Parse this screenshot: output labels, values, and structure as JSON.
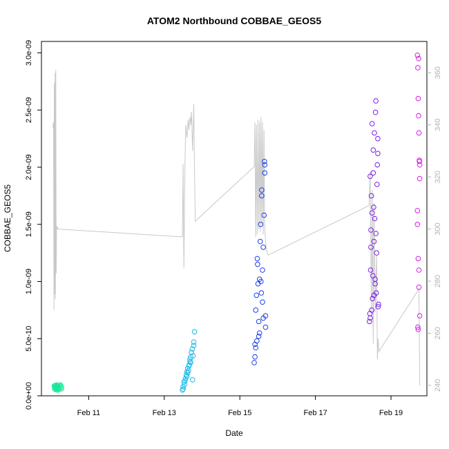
{
  "chart_data": {
    "type": "scatter",
    "title": "ATOM2 Northbound COBBAE_GEOS5",
    "xlabel": "Date",
    "ylabel": "COBBAE_GEOS5",
    "xlim": [
      9.75,
      19.95
    ],
    "ylim": [
      0,
      3.1e-09
    ],
    "y2lim": [
      236,
      372
    ],
    "x_ticks": [
      {
        "value": 11,
        "label": "Feb 11"
      },
      {
        "value": 13,
        "label": "Feb 13"
      },
      {
        "value": 15,
        "label": "Feb 15"
      },
      {
        "value": 17,
        "label": "Feb 17"
      },
      {
        "value": 19,
        "label": "Feb 19"
      }
    ],
    "y_ticks": [
      {
        "value": 0,
        "label": "0.0e+00"
      },
      {
        "value": 5e-10,
        "label": "5.0e-10"
      },
      {
        "value": 1e-09,
        "label": "1.0e-09"
      },
      {
        "value": 1.5e-09,
        "label": "1.5e-09"
      },
      {
        "value": 2e-09,
        "label": "2.0e-09"
      },
      {
        "value": 2.5e-09,
        "label": "2.5e-09"
      },
      {
        "value": 3e-09,
        "label": "3.0e-09"
      }
    ],
    "y2_ticks": [
      {
        "value": 240,
        "label": "240"
      },
      {
        "value": 260,
        "label": "260"
      },
      {
        "value": 280,
        "label": "280"
      },
      {
        "value": 300,
        "label": "300"
      },
      {
        "value": 320,
        "label": "320"
      },
      {
        "value": 340,
        "label": "340"
      },
      {
        "value": 360,
        "label": "360"
      }
    ],
    "grid": false,
    "series": [
      {
        "color": "#1ae89a",
        "x": [
          10.09,
          10.1,
          10.11,
          10.12,
          10.13,
          10.14,
          10.15,
          10.16,
          10.17,
          10.18,
          10.2,
          10.22,
          10.24,
          10.26,
          10.28,
          10.1,
          10.13,
          10.16,
          10.19,
          10.22,
          10.25,
          10.28
        ],
        "y": [
          8.5e-11,
          6e-11,
          9e-11,
          7e-11,
          5.5e-11,
          8e-11,
          6.5e-11,
          9.5e-11,
          7.5e-11,
          5e-11,
          8.5e-11,
          6e-11,
          9e-11,
          7e-11,
          8e-11,
          7.5e-11,
          9e-11,
          5.5e-11,
          8e-11,
          6.5e-11,
          9.5e-11,
          6e-11
        ]
      },
      {
        "color": "#1ab8e8",
        "x": [
          13.48,
          13.5,
          13.52,
          13.54,
          13.56,
          13.58,
          13.6,
          13.62,
          13.64,
          13.66,
          13.68,
          13.7,
          13.72,
          13.74,
          13.76,
          13.78,
          13.8,
          13.5,
          13.55,
          13.6,
          13.65,
          13.7,
          13.75,
          13.78,
          13.62,
          13.68
        ],
        "y": [
          5e-11,
          8e-11,
          1.2e-10,
          1e-10,
          1.5e-10,
          1.8e-10,
          2.1e-10,
          2.4e-10,
          2.2e-10,
          2.7e-10,
          3e-10,
          3.4e-10,
          3.8e-10,
          4.1e-10,
          3.5e-10,
          4.4e-10,
          5.6e-10,
          6e-11,
          1.3e-10,
          1.7e-10,
          2.6e-10,
          2.9e-10,
          1.4e-10,
          4.7e-10,
          2e-10,
          3.2e-10
        ]
      },
      {
        "color": "#1a3de8",
        "x": [
          15.38,
          15.4,
          15.42,
          15.44,
          15.46,
          15.48,
          15.5,
          15.52,
          15.54,
          15.56,
          15.58,
          15.6,
          15.62,
          15.64,
          15.66,
          15.68,
          15.4,
          15.45,
          15.5,
          15.55,
          15.6,
          15.65,
          15.68,
          15.42,
          15.52,
          15.58,
          15.62,
          15.66,
          15.47,
          15.57
        ],
        "y": [
          2.9e-10,
          4.5e-10,
          7.5e-10,
          8.8e-10,
          1.2e-09,
          9.8e-10,
          6.5e-10,
          5.5e-10,
          1.35e-09,
          1e-09,
          1.75e-09,
          1.1e-09,
          1.3e-09,
          1.58e-09,
          2.02e-09,
          7e-10,
          3.4e-10,
          4.8e-10,
          5.2e-10,
          1.5e-09,
          8.2e-10,
          2.05e-09,
          6e-10,
          4.2e-10,
          1.02e-09,
          1.8e-09,
          6.8e-10,
          1.95e-09,
          1.15e-09,
          9e-10
        ]
      },
      {
        "color": "#7a1ae8",
        "x": [
          18.43,
          18.45,
          18.47,
          18.49,
          18.5,
          18.52,
          18.54,
          18.56,
          18.58,
          18.6,
          18.62,
          18.64,
          18.66,
          18.44,
          18.46,
          18.48,
          18.51,
          18.53,
          18.55,
          18.57,
          18.59,
          18.61,
          18.63,
          18.65,
          18.67,
          18.45,
          18.5,
          18.55,
          18.6,
          18.65,
          18.47,
          18.53,
          18.58
        ],
        "y": [
          6.5e-10,
          1.92e-09,
          1.45e-09,
          7.5e-10,
          2.38e-09,
          1.05e-09,
          1.65e-09,
          2.3e-09,
          9.8e-10,
          2.58e-09,
          1.25e-09,
          2.02e-09,
          7.8e-10,
          7.2e-10,
          1.1e-09,
          1.75e-09,
          8.5e-10,
          2.15e-09,
          1.35e-09,
          1.55e-09,
          2.48e-09,
          9e-10,
          1.85e-09,
          2.25e-09,
          8e-10,
          6.8e-10,
          1.6e-09,
          8.8e-10,
          1.42e-09,
          2.12e-09,
          1.3e-09,
          1.95e-09,
          1.02e-09
        ]
      },
      {
        "color": "#d81ae8",
        "x": [
          19.7,
          19.71,
          19.72,
          19.73,
          19.74,
          19.75,
          19.76,
          19.7,
          19.72,
          19.74,
          19.76,
          19.71,
          19.73,
          19.75,
          19.7,
          19.74,
          19.72,
          19.76
        ],
        "y": [
          2.98e-09,
          2.87e-09,
          2.6e-09,
          2.45e-09,
          2.3e-09,
          2.05e-09,
          1.9e-09,
          1.5e-09,
          1.2e-09,
          9.5e-10,
          7e-10,
          6e-10,
          2.95e-09,
          2.06e-09,
          1.62e-09,
          1.1e-09,
          5.8e-10,
          2.02e-09
        ]
      }
    ],
    "line_series": {
      "axis": "right",
      "color": "#c8c8c8",
      "x": [
        10.05,
        10.07,
        10.08,
        10.09,
        10.1,
        10.11,
        10.12,
        10.13,
        10.14,
        10.15,
        10.16,
        10.17,
        10.18,
        10.2,
        13.48,
        13.5,
        13.52,
        13.55,
        13.57,
        13.6,
        13.63,
        13.65,
        13.68,
        13.7,
        13.72,
        13.75,
        13.78,
        13.8,
        13.82,
        15.38,
        15.4,
        15.42,
        15.44,
        15.46,
        15.48,
        15.5,
        15.52,
        15.54,
        15.56,
        15.58,
        15.6,
        15.62,
        15.64,
        15.66,
        15.7,
        15.75,
        18.42,
        18.45,
        18.48,
        18.5,
        18.53,
        18.55,
        18.58,
        18.62,
        18.64,
        18.66,
        18.68,
        19.74,
        19.76
      ],
      "y": [
        339,
        341,
        269,
        356,
        275,
        360,
        273,
        361,
        283,
        301,
        300,
        301,
        300,
        300,
        297,
        325,
        285,
        327,
        340,
        335,
        342,
        338,
        343,
        340,
        345,
        330,
        348,
        322,
        303,
        324,
        341,
        297,
        340,
        298,
        342,
        300,
        341,
        299,
        343,
        302,
        341,
        298,
        338,
        300,
        292,
        290,
        309,
        322,
        268,
        315,
        256,
        310,
        268,
        290,
        250,
        258,
        253,
        277,
        240
      ]
    }
  }
}
